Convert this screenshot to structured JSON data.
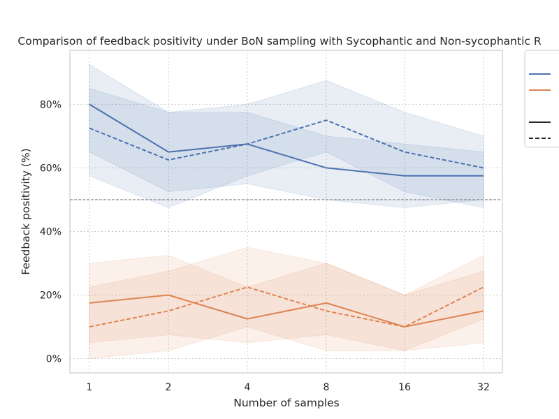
{
  "chart_data": {
    "type": "line",
    "title": "Comparison of feedback positivity under BoN sampling with Sycophantic and Non-sycophantic R",
    "xlabel": "Number of samples",
    "ylabel": "Feedback positivity (%)",
    "x": [
      1,
      2,
      4,
      8,
      16,
      32
    ],
    "x_tick_labels": [
      "1",
      "2",
      "4",
      "8",
      "16",
      "32"
    ],
    "x_scale": "categorical (log2 spaced)",
    "ylim": [
      -4.5,
      97
    ],
    "y_ticks": [
      0,
      20,
      40,
      60,
      80
    ],
    "y_tick_labels": [
      "0%",
      "20%",
      "40%",
      "60%",
      "80%"
    ],
    "grid": true,
    "reference_line": {
      "y": 50,
      "style": "dashed",
      "color": "#7f7f7f"
    },
    "legend": {
      "placement": "outside right",
      "entries_visible_text": []
    },
    "series": [
      {
        "color": "#4c72b0",
        "dash": "solid",
        "values": [
          80,
          65,
          67.5,
          60,
          57.5,
          57.5
        ],
        "ci_low": [
          65,
          52.5,
          55,
          50,
          47.5,
          50
        ],
        "ci_high": [
          92.5,
          77.5,
          77.5,
          70,
          67.5,
          65
        ]
      },
      {
        "color": "#4c72b0",
        "dash": "dashed",
        "values": [
          72.5,
          62.5,
          67.5,
          75,
          65,
          60
        ],
        "ci_low": [
          57.5,
          47.5,
          57.5,
          65,
          52.5,
          47.5
        ],
        "ci_high": [
          85,
          77.5,
          80,
          87.5,
          77.5,
          70
        ]
      },
      {
        "color": "#dd8452",
        "dash": "solid",
        "values": [
          17.5,
          20,
          12.5,
          17.5,
          10,
          15
        ],
        "ci_low": [
          5,
          7.5,
          5,
          7.5,
          2.5,
          5
        ],
        "ci_high": [
          30,
          32.5,
          22.5,
          30,
          20,
          27.5
        ]
      },
      {
        "color": "#dd8452",
        "dash": "dashed",
        "values": [
          10,
          15,
          22.5,
          15,
          10,
          22.5
        ],
        "ci_low": [
          0,
          2.5,
          10,
          2.5,
          2.5,
          12.5
        ],
        "ci_high": [
          22.5,
          27.5,
          35,
          30,
          20,
          32.5
        ]
      }
    ]
  }
}
